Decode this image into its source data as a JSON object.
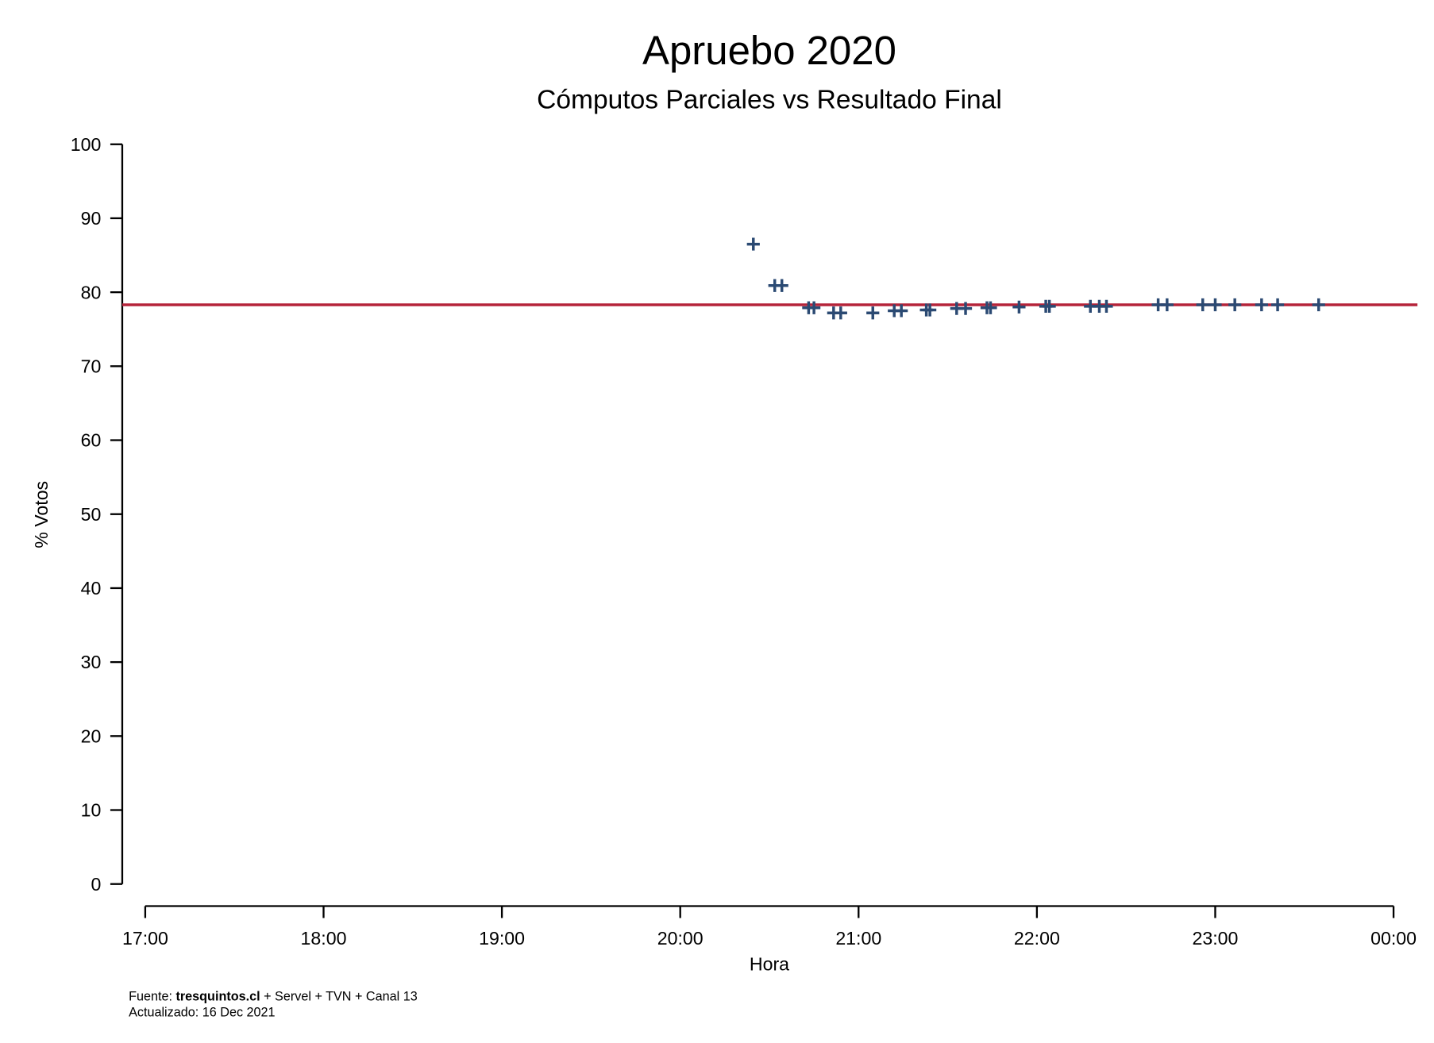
{
  "chart_data": {
    "type": "scatter",
    "title": "Apruebo 2020",
    "subtitle": "Cómputos Parciales vs Resultado Final",
    "x_label": "Hora",
    "y_label": "% Votos",
    "marker": "+",
    "color": "#2b4a73",
    "x": [
      20.41,
      20.53,
      20.57,
      20.72,
      20.75,
      20.86,
      20.9,
      21.08,
      21.2,
      21.24,
      21.38,
      21.4,
      21.55,
      21.6,
      21.72,
      21.74,
      21.9,
      22.05,
      22.07,
      22.3,
      22.35,
      22.39,
      22.68,
      22.73,
      22.93,
      23.0,
      23.11,
      23.26,
      23.35,
      23.58
    ],
    "values": [
      86.5,
      80.9,
      80.9,
      77.9,
      77.9,
      77.2,
      77.2,
      77.2,
      77.5,
      77.5,
      77.6,
      77.6,
      77.8,
      77.8,
      77.9,
      77.9,
      78.0,
      78.1,
      78.1,
      78.1,
      78.1,
      78.1,
      78.3,
      78.3,
      78.3,
      78.3,
      78.3,
      78.3,
      78.3,
      78.3
    ],
    "reference_line": {
      "value": 78.3,
      "color": "#b5243a"
    },
    "xlim": [
      17,
      24
    ],
    "ylim": [
      0,
      100
    ],
    "xticks": [
      {
        "value": 17,
        "label": "17:00"
      },
      {
        "value": 18,
        "label": "18:00"
      },
      {
        "value": 19,
        "label": "19:00"
      },
      {
        "value": 20,
        "label": "20:00"
      },
      {
        "value": 21,
        "label": "21:00"
      },
      {
        "value": 22,
        "label": "22:00"
      },
      {
        "value": 23,
        "label": "23:00"
      },
      {
        "value": 24,
        "label": "00:00"
      }
    ],
    "yticks": [
      0,
      10,
      20,
      30,
      40,
      50,
      60,
      70,
      80,
      90,
      100
    ],
    "source": {
      "prefix": "Fuente: ",
      "site": "tresquintos.cl",
      "rest": " + Servel + TVN + Canal 13"
    },
    "updated": "Actualizado: 16 Dec 2021"
  }
}
